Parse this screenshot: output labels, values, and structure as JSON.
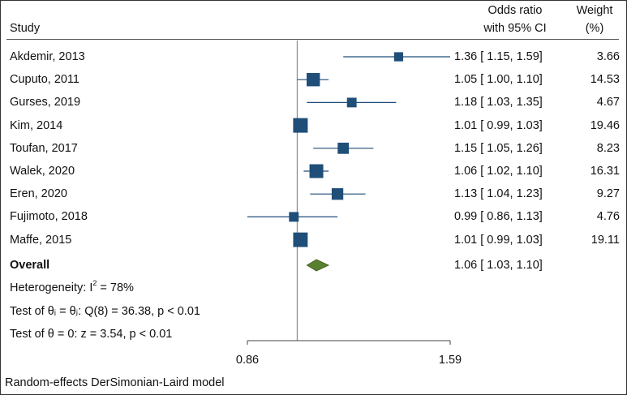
{
  "chart_data": {
    "type": "forest",
    "header": {
      "study": "Study",
      "estimate_line1": "Odds ratio",
      "estimate_line2": "with 95% CI",
      "weight_line1": "Weight",
      "weight_line2": "(%)"
    },
    "studies": [
      {
        "name": "Akdemir, 2013",
        "or": 1.36,
        "lo": 1.15,
        "hi": 1.59,
        "or_text": "1.36",
        "lo_text": "1.15",
        "hi_text": "1.59",
        "weight": "3.66",
        "weight_val": 3.66
      },
      {
        "name": "Cuputo, 2011",
        "or": 1.05,
        "lo": 1.0,
        "hi": 1.1,
        "or_text": "1.05",
        "lo_text": "1.00",
        "hi_text": "1.10",
        "weight": "14.53",
        "weight_val": 14.53
      },
      {
        "name": "Gurses, 2019",
        "or": 1.18,
        "lo": 1.03,
        "hi": 1.35,
        "or_text": "1.18",
        "lo_text": "1.03",
        "hi_text": "1.35",
        "weight": "4.67",
        "weight_val": 4.67
      },
      {
        "name": "Kim, 2014",
        "or": 1.01,
        "lo": 0.99,
        "hi": 1.03,
        "or_text": "1.01",
        "lo_text": "0.99",
        "hi_text": "1.03",
        "weight": "19.46",
        "weight_val": 19.46
      },
      {
        "name": "Toufan, 2017",
        "or": 1.15,
        "lo": 1.05,
        "hi": 1.26,
        "or_text": "1.15",
        "lo_text": "1.05",
        "hi_text": "1.26",
        "weight": "8.23",
        "weight_val": 8.23
      },
      {
        "name": "Walek, 2020",
        "or": 1.06,
        "lo": 1.02,
        "hi": 1.1,
        "or_text": "1.06",
        "lo_text": "1.02",
        "hi_text": "1.10",
        "weight": "16.31",
        "weight_val": 16.31
      },
      {
        "name": "Eren, 2020",
        "or": 1.13,
        "lo": 1.04,
        "hi": 1.23,
        "or_text": "1.13",
        "lo_text": "1.04",
        "hi_text": "1.23",
        "weight": "9.27",
        "weight_val": 9.27
      },
      {
        "name": "Fujimoto, 2018",
        "or": 0.99,
        "lo": 0.86,
        "hi": 1.13,
        "or_text": "0.99",
        "lo_text": "0.86",
        "hi_text": "1.13",
        "weight": "4.76",
        "weight_val": 4.76
      },
      {
        "name": "Maffe, 2015",
        "or": 1.01,
        "lo": 0.99,
        "hi": 1.03,
        "or_text": "1.01",
        "lo_text": "0.99",
        "hi_text": "1.03",
        "weight": "19.11",
        "weight_val": 19.11
      }
    ],
    "overall": {
      "label": "Overall",
      "or": 1.06,
      "lo": 1.03,
      "hi": 1.1,
      "or_text": "1.06",
      "lo_text": "1.03",
      "hi_text": "1.10"
    },
    "heterogeneity": {
      "prefix": "Heterogeneity: I",
      "sup": "2",
      "suffix": " = 78%"
    },
    "test_homogeneity": "Test of θᵢ = θⱼ: Q(8) = 36.38, p < 0.01",
    "test_effect": "Test of θ = 0: z = 3.54, p < 0.01",
    "xaxis": {
      "ticks": [
        0.86,
        1.59
      ],
      "tick_labels": [
        "0.86",
        "1.59"
      ],
      "scale": "log",
      "range": [
        0.86,
        1.59
      ],
      "reference": 1.0
    },
    "footer": "Random-effects DerSimonian-Laird model",
    "colors": {
      "box": "#1f4e79",
      "diamond": "#5a7f2e",
      "line": "#1f4e79",
      "axis": "#444444"
    }
  }
}
